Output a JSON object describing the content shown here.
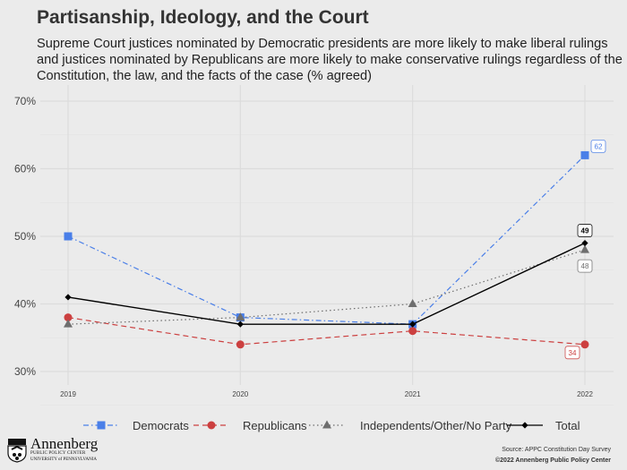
{
  "title": "Partisanship, Ideology, and the Court",
  "subtitle": "Supreme Court justices nominated by Democratic presidents are more likely to make liberal rulings and justices nominated by Republicans are more likely to make conservative rulings regardless of the Constitution, the law, and the facts of the case (% agreed)",
  "source": "Source: APPC Constitution Day Survey",
  "copyright": "©2022 Annenberg Public Policy Center",
  "logo": {
    "name": "Annenberg",
    "line1": "PUBLIC POLICY CENTER",
    "line2": "UNIVERSITY of PENNSYLVANIA"
  },
  "chart_data": {
    "type": "line",
    "title": "Partisanship, Ideology, and the Court",
    "x": [
      "2019",
      "2020",
      "2021",
      "2022"
    ],
    "ylim": [
      30,
      70
    ],
    "yticks": [
      30,
      40,
      50,
      60,
      70
    ],
    "ytick_labels": [
      "30%",
      "40%",
      "50%",
      "60%",
      "70%"
    ],
    "grid": true,
    "legend_position": "bottom",
    "series": [
      {
        "name": "Democrats",
        "values": [
          50,
          38,
          37,
          62
        ],
        "color": "#4a7fe8",
        "marker": "square",
        "dash": "dotdash",
        "end_label": "62"
      },
      {
        "name": "Republicans",
        "values": [
          38,
          34,
          36,
          34
        ],
        "color": "#cc4040",
        "marker": "circle",
        "dash": "dashed",
        "end_label": "34"
      },
      {
        "name": "Independents/Other/No Party",
        "values": [
          37,
          38,
          40,
          48
        ],
        "color": "#6e6e6e",
        "marker": "triangle",
        "dash": "dotted",
        "end_label": "48"
      },
      {
        "name": "Total",
        "values": [
          41,
          37,
          37,
          49
        ],
        "color": "#000000",
        "marker": "diamond",
        "dash": "solid",
        "end_label": "49"
      }
    ]
  }
}
